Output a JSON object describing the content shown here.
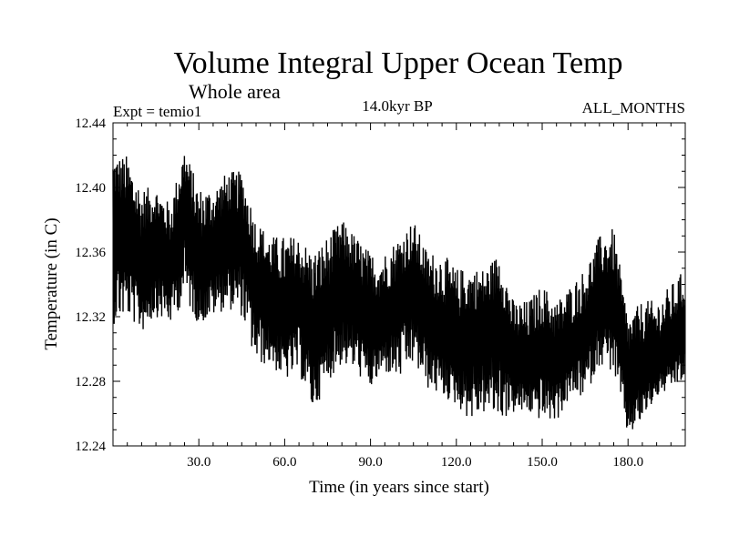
{
  "chart_data": {
    "type": "line",
    "title": "Volume Integral Upper Ocean Temp",
    "subtitle": "Whole area",
    "experiment": "Expt = temio1",
    "period": "14.0kyr BP",
    "months": "ALL_MONTHS",
    "xlabel": "Time (in years since start)",
    "ylabel": "Temperature (in C)",
    "xlim": [
      0,
      200
    ],
    "ylim": [
      12.24,
      12.44
    ],
    "xticks": [
      30,
      60,
      90,
      120,
      150,
      180
    ],
    "xtick_labels": [
      "30.0",
      "60.0",
      "90.0",
      "120.0",
      "150.0",
      "180.0"
    ],
    "yticks": [
      12.24,
      12.28,
      12.32,
      12.36,
      12.4,
      12.44
    ],
    "ytick_labels": [
      "12.24",
      "12.28",
      "12.32",
      "12.36",
      "12.40",
      "12.44"
    ],
    "grid": false,
    "series": [
      {
        "name": "temio1",
        "color": "#000000",
        "x": [
          0,
          5,
          10,
          15,
          20,
          25,
          30,
          35,
          40,
          45,
          50,
          55,
          60,
          65,
          70,
          75,
          80,
          85,
          90,
          95,
          100,
          105,
          110,
          115,
          120,
          125,
          130,
          135,
          140,
          145,
          150,
          155,
          160,
          165,
          170,
          175,
          180,
          185,
          190,
          195,
          200
        ],
        "values": [
          12.38,
          12.37,
          12.35,
          12.37,
          12.35,
          12.39,
          12.35,
          12.36,
          12.37,
          12.37,
          12.34,
          12.33,
          12.32,
          12.33,
          12.31,
          12.32,
          12.34,
          12.33,
          12.31,
          12.32,
          12.33,
          12.34,
          12.32,
          12.31,
          12.3,
          12.31,
          12.31,
          12.32,
          12.29,
          12.29,
          12.3,
          12.29,
          12.3,
          12.31,
          12.33,
          12.33,
          12.28,
          12.29,
          12.29,
          12.3,
          12.31
        ],
        "min": [
          12.315,
          12.32,
          12.31,
          12.32,
          12.315,
          12.33,
          12.315,
          12.32,
          12.325,
          12.32,
          12.29,
          12.29,
          12.28,
          12.285,
          12.26,
          12.28,
          12.29,
          12.285,
          12.275,
          12.285,
          12.28,
          12.29,
          12.275,
          12.27,
          12.265,
          12.255,
          12.26,
          12.255,
          12.26,
          12.26,
          12.255,
          12.255,
          12.27,
          12.27,
          12.29,
          12.285,
          12.245,
          12.255,
          12.27,
          12.275,
          12.28
        ],
        "max": [
          12.42,
          12.42,
          12.4,
          12.4,
          12.39,
          12.425,
          12.4,
          12.4,
          12.41,
          12.41,
          12.38,
          12.37,
          12.37,
          12.37,
          12.36,
          12.37,
          12.38,
          12.37,
          12.36,
          12.36,
          12.37,
          12.38,
          12.36,
          12.36,
          12.35,
          12.35,
          12.35,
          12.36,
          12.33,
          12.33,
          12.34,
          12.33,
          12.34,
          12.35,
          12.37,
          12.375,
          12.32,
          12.33,
          12.33,
          12.34,
          12.35
        ]
      }
    ]
  }
}
